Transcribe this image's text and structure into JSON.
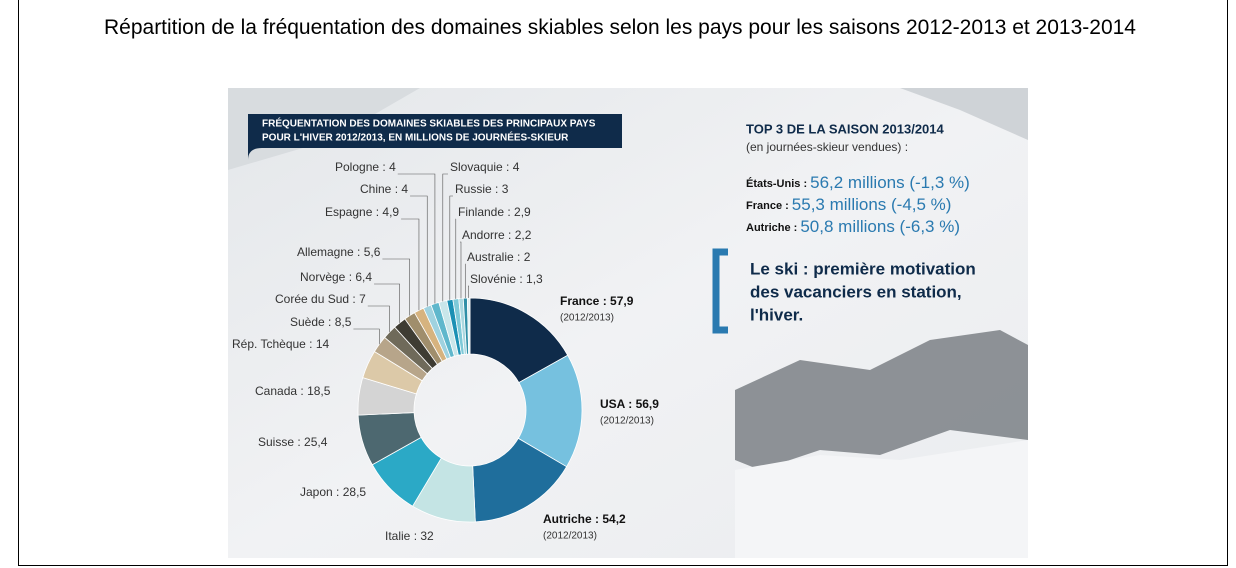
{
  "title": "Répartition de la fréquentation des domaines skiables selon les pays pour les saisons 2012-2013 et 2013-2014",
  "chart_data": {
    "type": "pie",
    "donut": true,
    "title": [
      "FRÉQUENTATION DES DOMAINES SKIABLES DES PRINCIPAUX PAYS",
      "POUR L'HIVER 2012/2013, EN MILLIONS DE JOURNÉES-SKIEUR"
    ],
    "label_separator": " : ",
    "categories": [
      "France",
      "USA",
      "Autriche",
      "Italie",
      "Japon",
      "Suisse",
      "Canada",
      "Rép. Tchèque",
      "Suède",
      "Corée du Sud",
      "Norvège",
      "Allemagne",
      "Espagne",
      "Chine",
      "Pologne",
      "Slovaquie",
      "Russie",
      "Finlande",
      "Andorre",
      "Australie",
      "Slovénie"
    ],
    "values": [
      57.9,
      56.9,
      54.2,
      32,
      28.5,
      25.4,
      18.5,
      14,
      8.5,
      7,
      6.4,
      5.6,
      4.9,
      4,
      4,
      4,
      3,
      2.9,
      2.2,
      2,
      1.3
    ],
    "value_labels": [
      "57,9",
      "56,9",
      "54,2",
      "32",
      "28,5",
      "25,4",
      "18,5",
      "14",
      "8,5",
      "7",
      "6,4",
      "5,6",
      "4,9",
      "4",
      "4",
      "4",
      "3",
      "2,9",
      "2,2",
      "2",
      "1,3"
    ],
    "colors": [
      "#0f2b4a",
      "#76c1df",
      "#1f6e9c",
      "#c4e4e4",
      "#2ba9c6",
      "#4d6870",
      "#d4d4d4",
      "#dcc9a8",
      "#b7a58a",
      "#6f6a5a",
      "#3e3c33",
      "#a08e6c",
      "#d6b37f",
      "#9fd2df",
      "#5fb7cc",
      "#c9e6ea",
      "#1b90b4",
      "#7ec9d8",
      "#aad8e0",
      "#2f8fa6",
      "#e0eef0"
    ],
    "annotations": [
      "(2012/2013)",
      "(2012/2013)",
      "(2012/2013)"
    ]
  },
  "sidebar": {
    "heading": "TOP 3 DE LA SAISON 2013/2014",
    "subheading": "(en journées-skieur vendues) :",
    "items": [
      {
        "country": "États-Unis :",
        "figure": "56,2 millions (-1,3 %)"
      },
      {
        "country": "France :",
        "figure": "55,3 millions (-4,5 %)"
      },
      {
        "country": "Autriche :",
        "figure": "50,8 millions (-6,3 %)"
      }
    ],
    "quote": [
      "Le ski : première motivation",
      "des vacanciers en station,",
      "l'hiver."
    ]
  }
}
